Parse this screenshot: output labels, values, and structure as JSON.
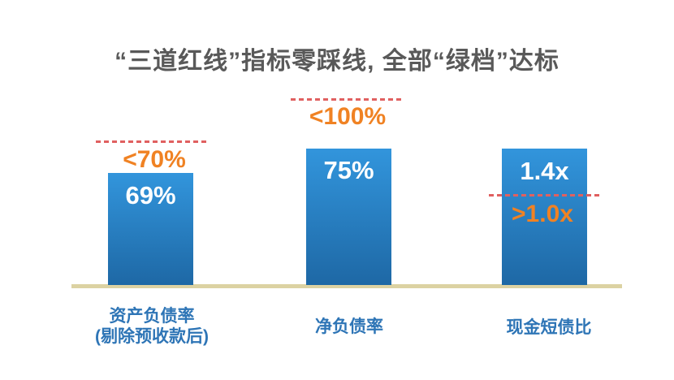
{
  "title": "“三道红线”指标零踩线, 全部“绿档”达标",
  "chart_data": {
    "type": "bar",
    "title": "“三道红线”指标零踩线, 全部“绿档”达标",
    "categories": [
      "资产负债率 (剔除预收款后)",
      "净负债率",
      "现金短债比"
    ],
    "values": [
      69,
      75,
      1.4
    ],
    "value_labels": [
      "69%",
      "75%",
      "1.4x"
    ],
    "thresholds": [
      {
        "label": "<70%",
        "value": 70,
        "relation": "below",
        "line_position": "above-bar"
      },
      {
        "label": "<100%",
        "value": 100,
        "relation": "below",
        "line_position": "above-bar"
      },
      {
        "label": ">1.0x",
        "value": 1.0,
        "relation": "above",
        "line_position": "crosses-bar"
      }
    ],
    "bars": [
      {
        "category_line1": "资产负债率",
        "category_line2": "(剔除预收款后)",
        "value": "69%",
        "threshold": "<70%"
      },
      {
        "category_line1": "净负债率",
        "value": "75%",
        "threshold": "<100%"
      },
      {
        "category_line1": "现金短债比",
        "value": "1.4x",
        "threshold": ">1.0x"
      }
    ],
    "legend": "none",
    "grid": false,
    "axis_line": "bottom-only"
  },
  "colors": {
    "title_text": "#595959",
    "bar_gradient_top": "#3295dc",
    "bar_gradient_bottom": "#1e68a5",
    "bar_value_text": "#ffffff",
    "threshold_text": "#f08223",
    "threshold_dash_line": "#e06060",
    "baseline": "#dcd2a2",
    "category_text": "#2e75b6",
    "background": "#ffffff"
  }
}
